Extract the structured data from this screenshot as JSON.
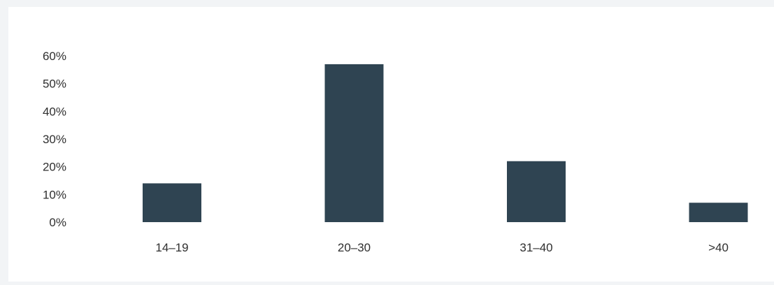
{
  "chart_data": {
    "type": "bar",
    "title": "",
    "xlabel": "",
    "ylabel": "",
    "categories": [
      "14–19",
      "20–30",
      "31–40",
      ">40"
    ],
    "values": [
      14,
      57,
      22,
      7
    ],
    "ylim": [
      0,
      60
    ],
    "yticks": [
      0,
      10,
      20,
      30,
      40,
      50,
      60
    ],
    "ytick_labels": [
      "0%",
      "10%",
      "20%",
      "30%",
      "40%",
      "50%",
      "60%"
    ],
    "grid": false,
    "bar_color": "#2f4452"
  }
}
